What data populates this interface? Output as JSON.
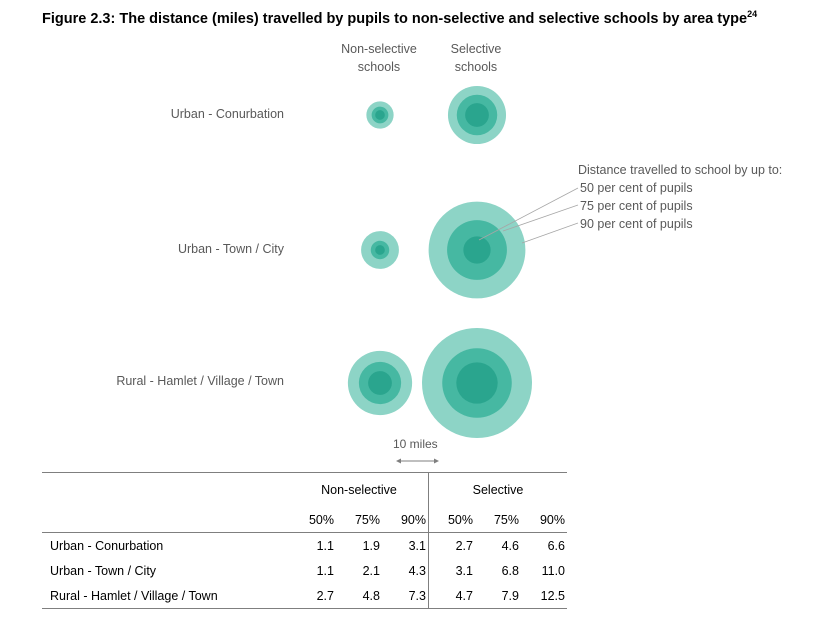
{
  "title": "Figure 2.3: The distance (miles) travelled by pupils to non-selective and selective schools by area type",
  "title_footnote": "24",
  "columns": {
    "non_selective": [
      "Non-selective",
      "schools"
    ],
    "selective": [
      "Selective",
      "schools"
    ]
  },
  "legend": {
    "heading": "Distance travelled to school by up to:",
    "items": [
      "50 per cent of pupils",
      "75 per cent of pupils",
      "90 per cent of pupils"
    ]
  },
  "scale": {
    "label": "10 miles",
    "miles": 10
  },
  "table": {
    "groups": [
      "Non-selective",
      "Selective"
    ],
    "percentiles": [
      "50%",
      "75%",
      "90%"
    ]
  },
  "colors": {
    "p50": "#2aa58e",
    "p75": "#46b8a2",
    "p90": "#8dd4c6"
  },
  "chart_data": {
    "type": "table",
    "row_categories": [
      "Urban - Conurbation",
      "Urban - Town / City",
      "Rural - Hamlet / Village / Town"
    ],
    "percentiles": [
      "50%",
      "75%",
      "90%"
    ],
    "series": [
      {
        "name": "Non-selective",
        "values": [
          [
            1.1,
            1.9,
            3.1
          ],
          [
            1.1,
            2.1,
            4.3
          ],
          [
            2.7,
            4.8,
            7.3
          ]
        ]
      },
      {
        "name": "Selective",
        "values": [
          [
            2.7,
            4.6,
            6.6
          ],
          [
            3.1,
            6.8,
            11.0
          ],
          [
            4.7,
            7.9,
            12.5
          ]
        ]
      }
    ]
  }
}
